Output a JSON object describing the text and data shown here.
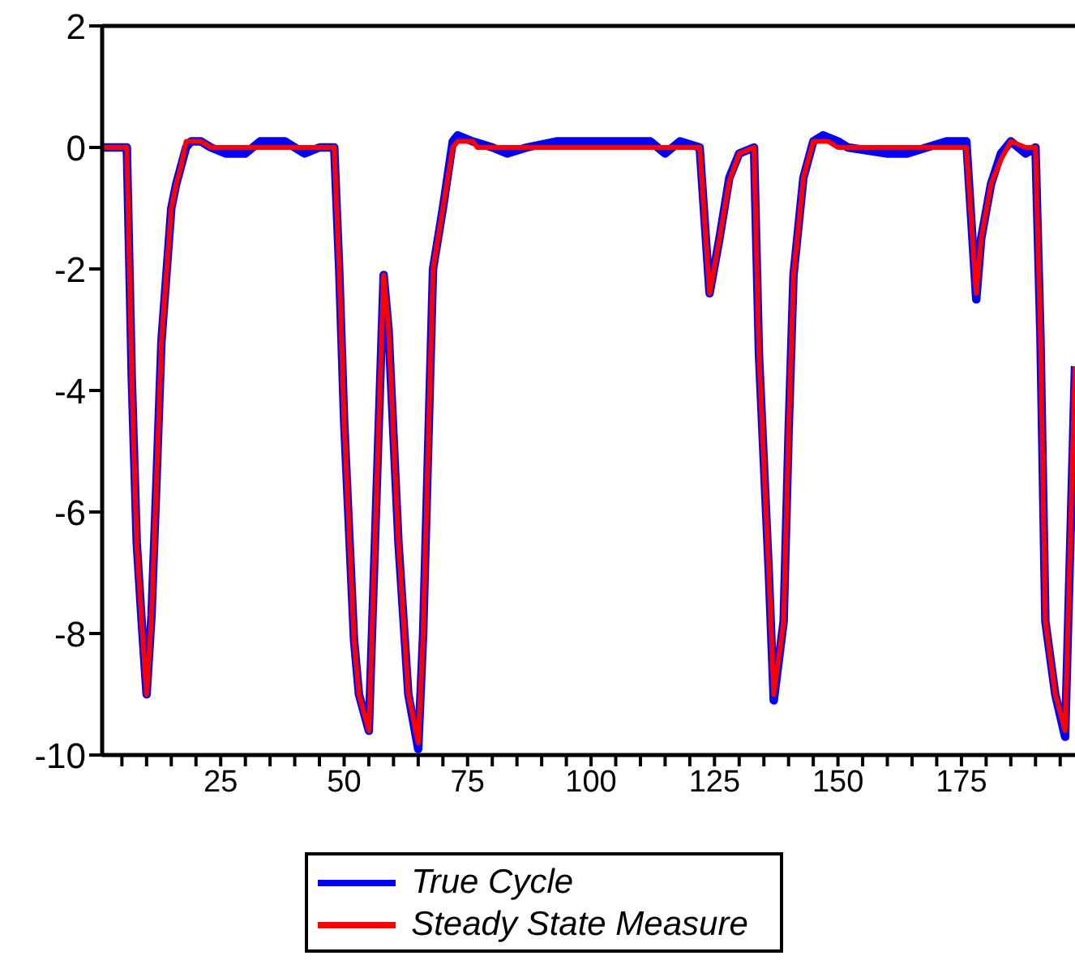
{
  "chart_data": {
    "type": "line",
    "xlim": [
      1,
      198
    ],
    "xticks": [
      {
        "value": 5,
        "label": null
      },
      {
        "value": 10,
        "label": null
      },
      {
        "value": 15,
        "label": null
      },
      {
        "value": 20,
        "label": null
      },
      25,
      {
        "value": 30,
        "label": null
      },
      {
        "value": 35,
        "label": null
      },
      {
        "value": 40,
        "label": null
      },
      {
        "value": 45,
        "label": null
      },
      50,
      {
        "value": 55,
        "label": null
      },
      {
        "value": 60,
        "label": null
      },
      {
        "value": 65,
        "label": null
      },
      {
        "value": 70,
        "label": null
      },
      75,
      {
        "value": 80,
        "label": null
      },
      {
        "value": 85,
        "label": null
      },
      {
        "value": 90,
        "label": null
      },
      {
        "value": 95,
        "label": null
      },
      100,
      {
        "value": 105,
        "label": null
      },
      {
        "value": 110,
        "label": null
      },
      {
        "value": 115,
        "label": null
      },
      {
        "value": 120,
        "label": null
      },
      125,
      {
        "value": 130,
        "label": null
      },
      {
        "value": 135,
        "label": null
      },
      {
        "value": 140,
        "label": null
      },
      {
        "value": 145,
        "label": null
      },
      150,
      {
        "value": 155,
        "label": null
      },
      {
        "value": 160,
        "label": null
      },
      {
        "value": 165,
        "label": null
      },
      {
        "value": 170,
        "label": null
      },
      175,
      {
        "value": 180,
        "label": null
      },
      {
        "value": 185,
        "label": null
      },
      {
        "value": 190,
        "label": null
      },
      {
        "value": 195,
        "label": null
      }
    ],
    "ylim": [
      -10,
      2
    ],
    "yticks": [
      -10,
      -8,
      -6,
      -4,
      -2,
      0,
      2
    ],
    "grid": false,
    "legend": "bottom",
    "marker": "none",
    "line_style": "solid",
    "series": [
      {
        "name": "True Cycle",
        "color": "#0000ff",
        "x": [
          1,
          6,
          7,
          8,
          9,
          10,
          11,
          12,
          13,
          15,
          16,
          17,
          18,
          19,
          21,
          23,
          26,
          30,
          33,
          38,
          42,
          45,
          48,
          49,
          50,
          52,
          53,
          55,
          58,
          59,
          61,
          63,
          65,
          66,
          68,
          70,
          72,
          73,
          76,
          80,
          83,
          87,
          93,
          112,
          115,
          118,
          122,
          124,
          126,
          128,
          130,
          133,
          134,
          136,
          137,
          139,
          140,
          141,
          143,
          145,
          147,
          150,
          152,
          160,
          164,
          172,
          176,
          178,
          179,
          181,
          183,
          185,
          188,
          190,
          191,
          192,
          194,
          196,
          198
        ],
        "values": [
          0,
          0,
          -3.8,
          -6.5,
          -7.8,
          -9,
          -7.7,
          -5.5,
          -3.2,
          -1,
          -0.6,
          -0.3,
          0,
          0.1,
          0.1,
          0,
          -0.1,
          -0.1,
          0.1,
          0.1,
          -0.1,
          0,
          0,
          -2,
          -4.5,
          -8.1,
          -9,
          -9.6,
          -2.1,
          -3,
          -6.5,
          -9,
          -9.9,
          -8,
          -2,
          -1,
          0.1,
          0.2,
          0.1,
          0,
          -0.1,
          0,
          0.1,
          0.1,
          -0.1,
          0.1,
          0,
          -2.4,
          -1.5,
          -0.5,
          -0.1,
          0,
          -3.4,
          -7,
          -9.1,
          -7.8,
          -4.7,
          -2.1,
          -0.5,
          0.1,
          0.2,
          0.1,
          0,
          -0.1,
          -0.1,
          0.1,
          0.1,
          -2.5,
          -1.5,
          -0.6,
          -0.1,
          0.1,
          -0.1,
          0,
          -3.1,
          -7.8,
          -9,
          -9.7,
          -3.6
        ]
      },
      {
        "name": "Steady State Measure",
        "color": "#ff0000",
        "x": [
          1,
          6,
          7,
          8,
          9,
          10,
          11,
          12,
          13,
          15,
          16,
          17,
          18,
          19,
          21,
          23,
          48,
          49,
          50,
          52,
          53,
          55,
          58,
          59,
          61,
          63,
          65,
          66,
          68,
          70,
          72,
          73,
          76,
          77,
          122,
          124,
          126,
          128,
          130,
          133,
          134,
          136,
          137,
          139,
          140,
          141,
          143,
          145,
          147,
          148,
          150,
          176,
          178,
          179,
          181,
          183,
          185,
          188,
          190,
          191,
          192,
          194,
          196,
          198
        ],
        "values": [
          0,
          0,
          -3.8,
          -6.5,
          -7.8,
          -9,
          -7.7,
          -5.5,
          -3.2,
          -1,
          -0.6,
          -0.3,
          0.1,
          0.1,
          0.1,
          0,
          0,
          -2,
          -4.5,
          -8.1,
          -9,
          -9.6,
          -2.1,
          -3,
          -6.5,
          -9,
          -9.8,
          -8,
          -2,
          -1,
          0,
          0.1,
          0.1,
          0,
          0,
          -2.4,
          -1.5,
          -0.55,
          -0.1,
          0,
          -3.4,
          -7,
          -9,
          -7.8,
          -4.7,
          -2.1,
          -0.5,
          0.1,
          0.1,
          0.1,
          0,
          0,
          -2.4,
          -1.5,
          -0.6,
          -0.2,
          0.1,
          0,
          0,
          -3.1,
          -7.8,
          -9,
          -9.6,
          -3.6
        ]
      }
    ]
  }
}
